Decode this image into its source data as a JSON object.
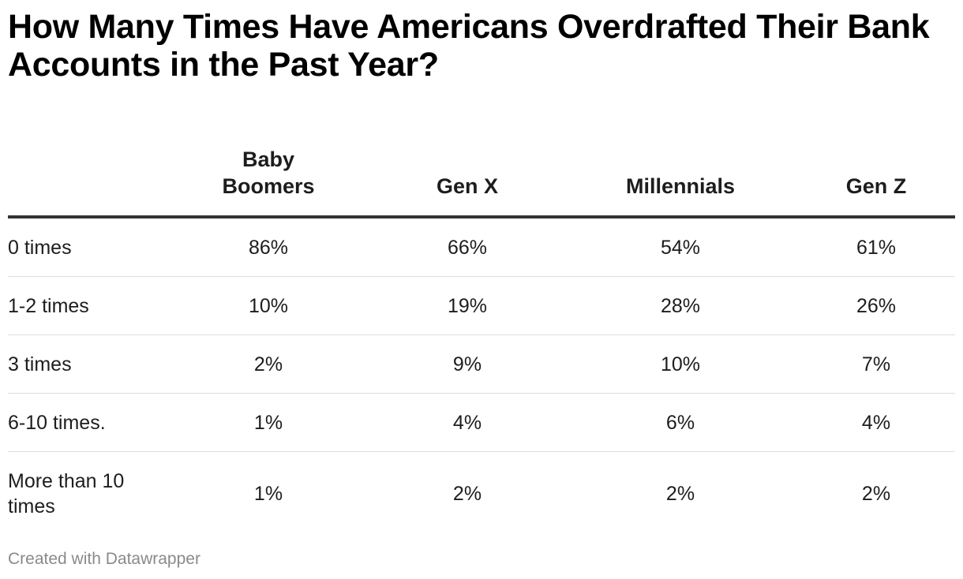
{
  "title": "How Many Times Have Americans Overdrafted Their Bank Accounts in the Past Year?",
  "footer": "Created with Datawrapper",
  "table": {
    "columns": [
      "",
      "Baby Boomers",
      "Gen X",
      "Millennials",
      "Gen Z"
    ],
    "rows": [
      {
        "label": "0 times",
        "values": [
          "86%",
          "66%",
          "54%",
          "61%"
        ]
      },
      {
        "label": "1-2 times",
        "values": [
          "10%",
          "19%",
          "28%",
          "26%"
        ]
      },
      {
        "label": "3 times",
        "values": [
          "2%",
          "9%",
          "10%",
          "7%"
        ]
      },
      {
        "label": "6-10 times.",
        "values": [
          "1%",
          "4%",
          "6%",
          "4%"
        ]
      },
      {
        "label": "More than 10 times",
        "values": [
          "1%",
          "2%",
          "2%",
          "2%"
        ]
      }
    ]
  },
  "chart_data": {
    "type": "table",
    "title": "How Many Times Have Americans Overdrafted Their Bank Accounts in the Past Year?",
    "categories": [
      "0 times",
      "1-2 times",
      "3 times",
      "6-10 times.",
      "More than 10 times"
    ],
    "series": [
      {
        "name": "Baby Boomers",
        "values": [
          86,
          10,
          2,
          1,
          1
        ]
      },
      {
        "name": "Gen X",
        "values": [
          66,
          19,
          9,
          4,
          2
        ]
      },
      {
        "name": "Millennials",
        "values": [
          54,
          28,
          10,
          6,
          2
        ]
      },
      {
        "name": "Gen Z",
        "values": [
          61,
          26,
          7,
          4,
          2
        ]
      }
    ],
    "unit": "%"
  }
}
